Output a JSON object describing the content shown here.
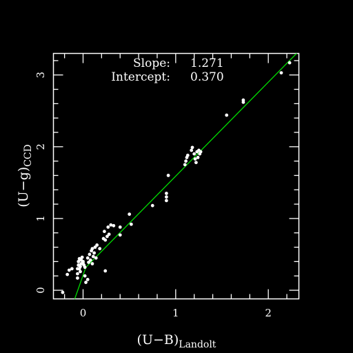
{
  "chart_data": {
    "type": "scatter",
    "title": "",
    "xlabel": {
      "main": "(U−B)",
      "sub": "Landolt"
    },
    "ylabel": {
      "main": "(U−g)",
      "sub": "CCD"
    },
    "xlim": [
      -0.32,
      2.33
    ],
    "ylim": [
      -0.12,
      3.3
    ],
    "x_ticks": [
      0,
      1,
      2
    ],
    "y_ticks": [
      0,
      1,
      2,
      3
    ],
    "grid": false,
    "annotations": [
      {
        "label": "Slope:",
        "value": "1.271"
      },
      {
        "label": "Intercept:",
        "value": "0.370"
      }
    ],
    "fit": {
      "slope": 1.271,
      "intercept": 0.37,
      "break_x": 0.03,
      "lower_segment": [
        [
          -0.09,
          -0.12
        ],
        [
          0.03,
          0.32
        ]
      ],
      "color": "#00dd00"
    },
    "colors": {
      "background": "#000000",
      "foreground": "#ffffff",
      "fit_line": "#00dd00"
    },
    "points": [
      [
        -0.22,
        -0.03
      ],
      [
        -0.17,
        0.22
      ],
      [
        -0.15,
        0.28
      ],
      [
        -0.12,
        0.3
      ],
      [
        -0.06,
        0.17
      ],
      [
        -0.06,
        0.23
      ],
      [
        -0.06,
        0.3
      ],
      [
        -0.05,
        0.35
      ],
      [
        -0.05,
        0.4
      ],
      [
        -0.04,
        0.44
      ],
      [
        -0.04,
        0.3
      ],
      [
        -0.03,
        0.26
      ],
      [
        -0.03,
        0.33
      ],
      [
        -0.02,
        0.37
      ],
      [
        -0.02,
        0.42
      ],
      [
        -0.01,
        0.46
      ],
      [
        0.0,
        0.38
      ],
      [
        0.0,
        0.4
      ],
      [
        0.01,
        0.35
      ],
      [
        0.02,
        0.32
      ],
      [
        0.02,
        0.2
      ],
      [
        0.03,
        0.11
      ],
      [
        0.05,
        0.15
      ],
      [
        0.05,
        0.45
      ],
      [
        0.06,
        0.39
      ],
      [
        0.07,
        0.5
      ],
      [
        0.08,
        0.42
      ],
      [
        0.09,
        0.55
      ],
      [
        0.1,
        0.37
      ],
      [
        0.1,
        0.58
      ],
      [
        0.11,
        0.47
      ],
      [
        0.12,
        0.52
      ],
      [
        0.13,
        0.6
      ],
      [
        0.14,
        0.45
      ],
      [
        0.15,
        0.63
      ],
      [
        0.18,
        0.58
      ],
      [
        0.22,
        0.72
      ],
      [
        0.23,
        0.82
      ],
      [
        0.24,
        0.7
      ],
      [
        0.24,
        0.27
      ],
      [
        0.26,
        0.75
      ],
      [
        0.27,
        0.88
      ],
      [
        0.28,
        0.78
      ],
      [
        0.3,
        0.91
      ],
      [
        0.33,
        0.9
      ],
      [
        0.4,
        0.88
      ],
      [
        0.4,
        0.77
      ],
      [
        0.5,
        1.06
      ],
      [
        0.52,
        0.92
      ],
      [
        0.75,
        1.18
      ],
      [
        0.9,
        1.35
      ],
      [
        0.9,
        1.3
      ],
      [
        0.9,
        1.25
      ],
      [
        0.92,
        1.6
      ],
      [
        1.1,
        1.75
      ],
      [
        1.11,
        1.8
      ],
      [
        1.12,
        1.85
      ],
      [
        1.13,
        1.88
      ],
      [
        1.17,
        1.95
      ],
      [
        1.18,
        1.99
      ],
      [
        1.2,
        1.9
      ],
      [
        1.21,
        1.83
      ],
      [
        1.22,
        1.78
      ],
      [
        1.23,
        1.93
      ],
      [
        1.24,
        1.85
      ],
      [
        1.25,
        1.95
      ],
      [
        1.26,
        1.9
      ],
      [
        1.27,
        1.93
      ],
      [
        1.55,
        2.44
      ],
      [
        1.73,
        2.65
      ],
      [
        1.73,
        2.62
      ],
      [
        2.14,
        3.03
      ],
      [
        2.23,
        3.17
      ]
    ]
  }
}
